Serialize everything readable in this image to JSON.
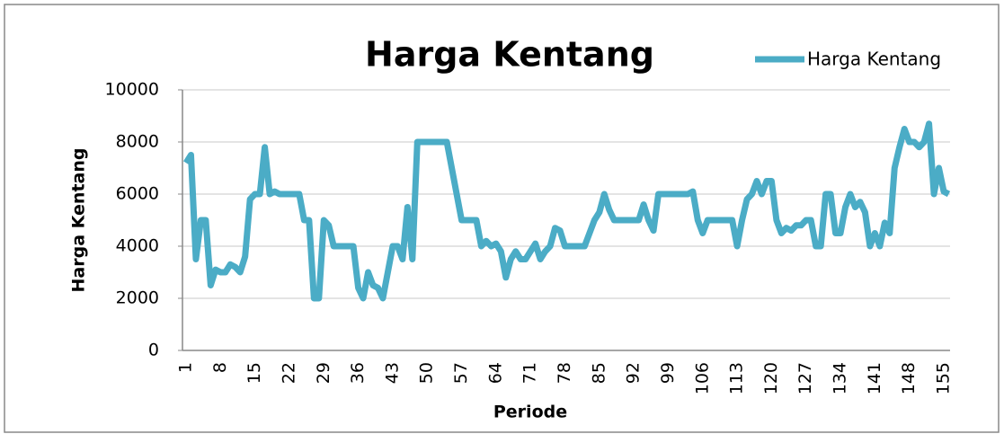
{
  "chart_data": {
    "type": "line",
    "title": "Harga Kentang",
    "xlabel": "Periode",
    "ylabel": "Harga Kentang",
    "categories": [
      1,
      null,
      null,
      null,
      null,
      null,
      null,
      8,
      null,
      null,
      null,
      null,
      null,
      null,
      15,
      null,
      null,
      null,
      null,
      null,
      null,
      22,
      null,
      null,
      null,
      null,
      null,
      null,
      29,
      null,
      null,
      null,
      null,
      null,
      null,
      36,
      null,
      null,
      null,
      null,
      null,
      null,
      43,
      null,
      null,
      null,
      null,
      null,
      null,
      50,
      null,
      null,
      null,
      null,
      null,
      null,
      57,
      null,
      null,
      null,
      null,
      null,
      null,
      64,
      null,
      null,
      null,
      null,
      null,
      null,
      71,
      null,
      null,
      null,
      null,
      null,
      null,
      78,
      null,
      null,
      null,
      null,
      null,
      null,
      85,
      null,
      null,
      null,
      null,
      null,
      null,
      92,
      null,
      null,
      null,
      null,
      null,
      null,
      99,
      null,
      null,
      null,
      null,
      null,
      null,
      106,
      null,
      null,
      null,
      null,
      null,
      null,
      113,
      null,
      null,
      null,
      null,
      null,
      null,
      120,
      null,
      null,
      null,
      null,
      null,
      null,
      127,
      null,
      null,
      null,
      null,
      null,
      null,
      134,
      null,
      null,
      null,
      null,
      null,
      null,
      141,
      null,
      null,
      null,
      null,
      null,
      null,
      148,
      null,
      null,
      null,
      null,
      null,
      null,
      155,
      null
    ],
    "series": [
      {
        "name": "Harga Kentang",
        "color": "#4bacc6",
        "values": [
          7200,
          7500,
          3500,
          5000,
          5000,
          2500,
          3100,
          3000,
          3000,
          3300,
          3200,
          3000,
          3600,
          5800,
          6000,
          6000,
          7800,
          6000,
          6100,
          6000,
          6000,
          6000,
          6000,
          6000,
          5000,
          5000,
          2000,
          2000,
          5000,
          4800,
          4000,
          4000,
          4000,
          4000,
          4000,
          2400,
          2000,
          3000,
          2500,
          2400,
          2000,
          3000,
          4000,
          4000,
          3500,
          5500,
          3500,
          8000,
          8000,
          8000,
          8000,
          8000,
          8000,
          8000,
          7000,
          6000,
          5000,
          5000,
          5000,
          5000,
          4000,
          4200,
          4000,
          4100,
          3800,
          2800,
          3500,
          3800,
          3500,
          3500,
          3800,
          4100,
          3500,
          3800,
          4000,
          4700,
          4600,
          4000,
          4000,
          4000,
          4000,
          4000,
          4500,
          5000,
          5300,
          6000,
          5400,
          5000,
          5000,
          5000,
          5000,
          5000,
          5000,
          5600,
          5000,
          4600,
          6000,
          6000,
          6000,
          6000,
          6000,
          6000,
          6000,
          6100,
          5000,
          4500,
          5000,
          5000,
          5000,
          5000,
          5000,
          5000,
          4000,
          5000,
          5800,
          6000,
          6500,
          6000,
          6500,
          6500,
          5000,
          4500,
          4700,
          4600,
          4800,
          4800,
          5000,
          5000,
          4000,
          4000,
          6000,
          6000,
          4500,
          4500,
          5500,
          6000,
          5500,
          5700,
          5300,
          4000,
          4500,
          4000,
          4900,
          4500,
          7000,
          7800,
          8500,
          8000,
          8000,
          7800,
          8000,
          8700,
          6000,
          7000,
          6100,
          6000
        ]
      }
    ],
    "ylim": [
      0,
      10000
    ],
    "yticks": [
      0,
      2000,
      4000,
      6000,
      8000,
      10000
    ],
    "grid": true,
    "legend": "top-right"
  }
}
